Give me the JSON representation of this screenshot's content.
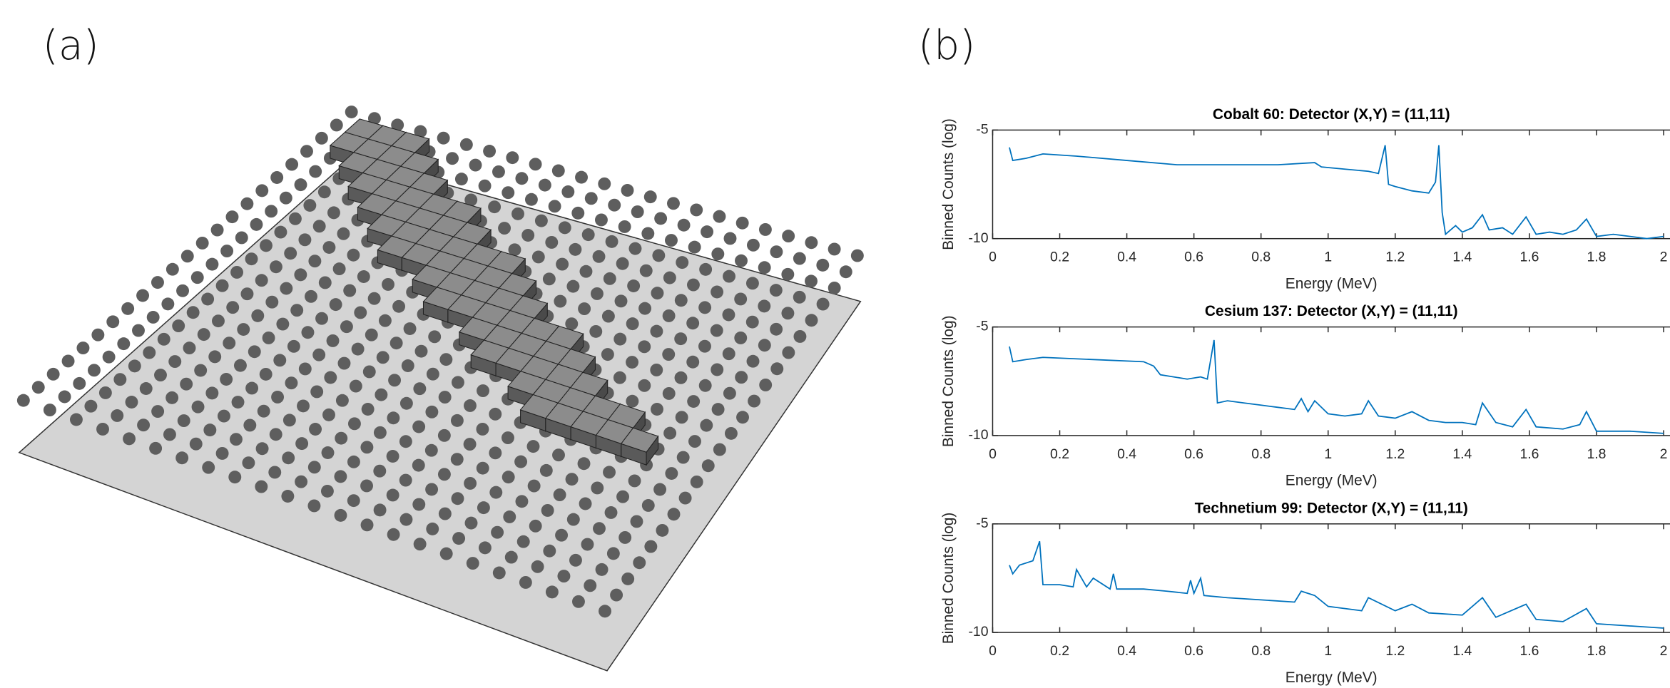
{
  "panel_labels": [
    "(a)",
    "(b)"
  ],
  "chart_data": [
    {
      "type": "line",
      "title": "Cobalt 60: Detector (X,Y) = (11,11)",
      "x_label": "Energy (MeV)",
      "y_label": "Binned Counts (log)",
      "x": [
        0.05,
        0.06,
        0.1,
        0.15,
        0.25,
        0.4,
        0.55,
        0.7,
        0.85,
        0.96,
        0.98,
        1.05,
        1.12,
        1.15,
        1.17,
        1.18,
        1.2,
        1.25,
        1.3,
        1.32,
        1.33,
        1.34,
        1.35,
        1.38,
        1.4,
        1.43,
        1.46,
        1.48,
        1.52,
        1.55,
        1.59,
        1.62,
        1.66,
        1.7,
        1.74,
        1.77,
        1.8,
        1.85,
        1.9,
        1.95,
        2.0
      ],
      "values": [
        -5.8,
        -6.4,
        -6.3,
        -6.1,
        -6.2,
        -6.4,
        -6.6,
        -6.6,
        -6.6,
        -6.5,
        -6.7,
        -6.8,
        -6.9,
        -7.0,
        -5.7,
        -7.5,
        -7.6,
        -7.8,
        -7.9,
        -7.4,
        -5.7,
        -8.8,
        -9.8,
        -9.4,
        -9.7,
        -9.5,
        -8.9,
        -9.6,
        -9.5,
        -9.8,
        -9.0,
        -9.8,
        -9.7,
        -9.8,
        -9.6,
        -9.1,
        -9.9,
        -9.8,
        -9.9,
        -10.0,
        -9.9
      ],
      "color": "#0072bd",
      "xlim": [
        0,
        2
      ],
      "xticks": [
        0,
        0.2,
        0.4,
        0.6,
        0.8,
        1,
        1.2,
        1.4,
        1.6,
        1.8,
        2
      ],
      "ylim": [
        -10,
        -5
      ],
      "yticks": [
        -10,
        -5
      ]
    },
    {
      "type": "line",
      "title": "Cesium 137: Detector (X,Y) = (11,11)",
      "x_label": "Energy (MeV)",
      "y_label": "Binned Counts (log)",
      "x": [
        0.05,
        0.06,
        0.1,
        0.15,
        0.3,
        0.45,
        0.48,
        0.5,
        0.58,
        0.62,
        0.64,
        0.66,
        0.67,
        0.7,
        0.75,
        0.8,
        0.85,
        0.9,
        0.92,
        0.94,
        0.96,
        1.0,
        1.05,
        1.1,
        1.12,
        1.15,
        1.2,
        1.25,
        1.3,
        1.35,
        1.4,
        1.44,
        1.46,
        1.5,
        1.55,
        1.59,
        1.62,
        1.7,
        1.75,
        1.77,
        1.8,
        1.9,
        2.0
      ],
      "values": [
        -5.9,
        -6.6,
        -6.5,
        -6.4,
        -6.5,
        -6.6,
        -6.8,
        -7.2,
        -7.4,
        -7.3,
        -7.4,
        -5.6,
        -8.5,
        -8.4,
        -8.5,
        -8.6,
        -8.7,
        -8.8,
        -8.3,
        -8.9,
        -8.4,
        -9.0,
        -9.1,
        -9.0,
        -8.4,
        -9.1,
        -9.2,
        -8.9,
        -9.3,
        -9.4,
        -9.4,
        -9.5,
        -8.5,
        -9.4,
        -9.6,
        -8.8,
        -9.6,
        -9.7,
        -9.5,
        -8.9,
        -9.8,
        -9.8,
        -9.9
      ],
      "color": "#0072bd",
      "xlim": [
        0,
        2
      ],
      "xticks": [
        0,
        0.2,
        0.4,
        0.6,
        0.8,
        1,
        1.2,
        1.4,
        1.6,
        1.8,
        2
      ],
      "ylim": [
        -10,
        -5
      ],
      "yticks": [
        -10,
        -5
      ]
    },
    {
      "type": "line",
      "title": "Technetium 99: Detector (X,Y) = (11,11)",
      "x_label": "Energy (MeV)",
      "y_label": "Binned Counts (log)",
      "x": [
        0.05,
        0.06,
        0.08,
        0.12,
        0.14,
        0.15,
        0.2,
        0.24,
        0.25,
        0.28,
        0.3,
        0.35,
        0.36,
        0.37,
        0.45,
        0.52,
        0.58,
        0.59,
        0.6,
        0.62,
        0.63,
        0.7,
        0.8,
        0.9,
        0.92,
        0.96,
        1.0,
        1.1,
        1.12,
        1.2,
        1.25,
        1.3,
        1.4,
        1.46,
        1.5,
        1.59,
        1.62,
        1.7,
        1.77,
        1.8,
        1.9,
        2.0
      ],
      "values": [
        -6.9,
        -7.3,
        -6.9,
        -6.7,
        -5.8,
        -7.8,
        -7.8,
        -7.9,
        -7.1,
        -7.9,
        -7.5,
        -8.0,
        -7.3,
        -8.0,
        -8.0,
        -8.1,
        -8.2,
        -7.6,
        -8.2,
        -7.5,
        -8.3,
        -8.4,
        -8.5,
        -8.6,
        -8.1,
        -8.3,
        -8.8,
        -9.0,
        -8.4,
        -9.0,
        -8.7,
        -9.1,
        -9.2,
        -8.4,
        -9.3,
        -8.7,
        -9.4,
        -9.5,
        -8.9,
        -9.6,
        -9.7,
        -9.8
      ],
      "color": "#0072bd",
      "xlim": [
        0,
        2
      ],
      "xticks": [
        0,
        0.2,
        0.4,
        0.6,
        0.8,
        1,
        1.2,
        1.4,
        1.6,
        1.8,
        2
      ],
      "ylim": [
        -10,
        -5
      ],
      "yticks": [
        -10,
        -5
      ]
    }
  ]
}
